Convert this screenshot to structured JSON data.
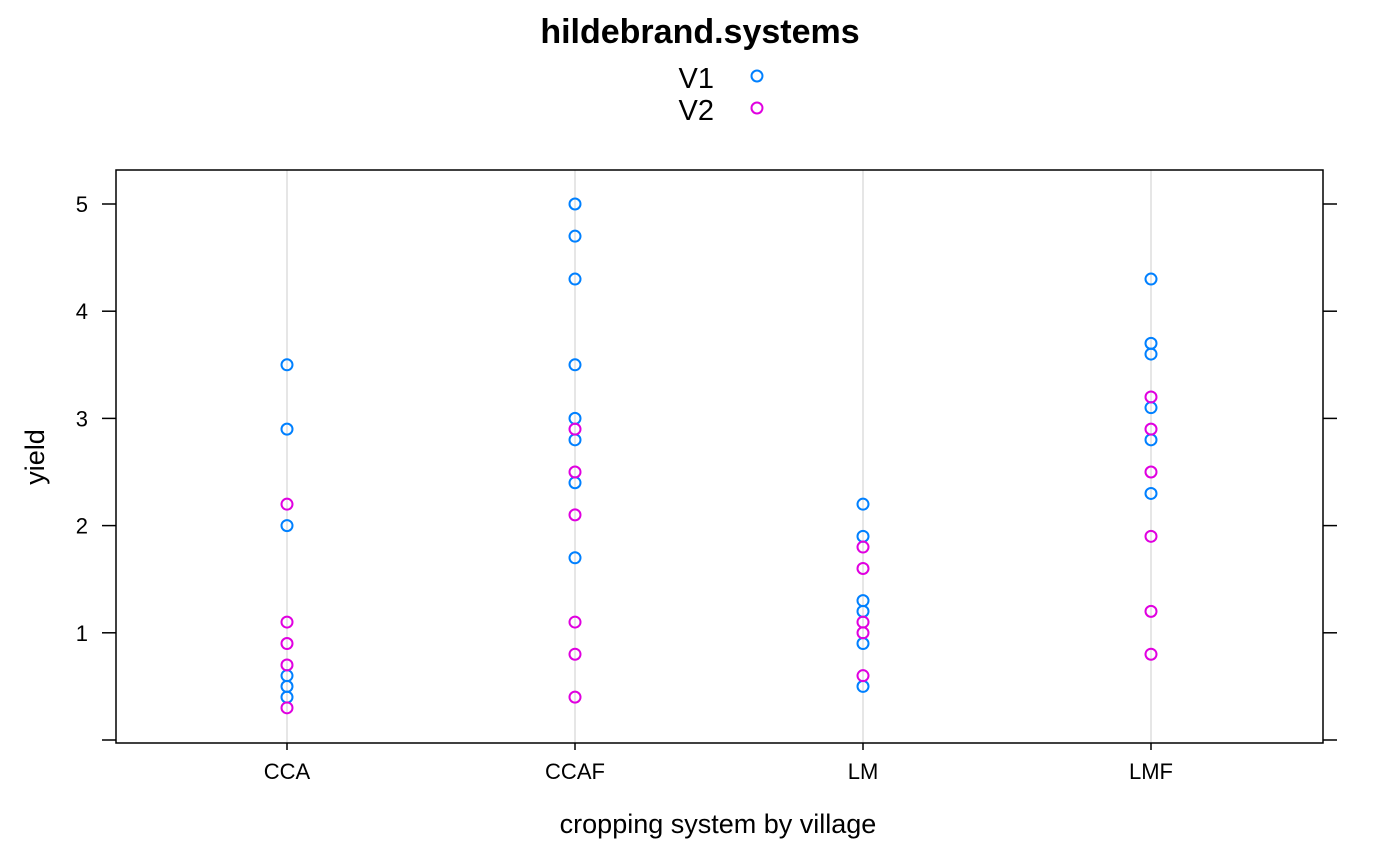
{
  "chart_data": {
    "type": "scatter",
    "title": "hildebrand.systems",
    "xlabel": "cropping system by village",
    "ylabel": "yield",
    "categories": [
      "CCA",
      "CCAF",
      "LM",
      "LMF"
    ],
    "ylim": [
      0,
      5.3
    ],
    "yticks": [
      "1",
      "2",
      "3",
      "4",
      "5"
    ],
    "grid": "vertical",
    "legend_position": "top",
    "series": [
      {
        "name": "V1",
        "color": "#0080ff",
        "points": [
          [
            "CCA",
            3.5
          ],
          [
            "CCA",
            2.9
          ],
          [
            "CCA",
            2.0
          ],
          [
            "CCA",
            0.6
          ],
          [
            "CCA",
            0.5
          ],
          [
            "CCA",
            0.4
          ],
          [
            "CCAF",
            5.0
          ],
          [
            "CCAF",
            4.7
          ],
          [
            "CCAF",
            4.3
          ],
          [
            "CCAF",
            3.5
          ],
          [
            "CCAF",
            3.0
          ],
          [
            "CCAF",
            2.8
          ],
          [
            "CCAF",
            2.4
          ],
          [
            "CCAF",
            1.7
          ],
          [
            "LM",
            2.2
          ],
          [
            "LM",
            1.9
          ],
          [
            "LM",
            1.3
          ],
          [
            "LM",
            1.2
          ],
          [
            "LM",
            0.9
          ],
          [
            "LM",
            0.5
          ],
          [
            "LMF",
            4.3
          ],
          [
            "LMF",
            3.7
          ],
          [
            "LMF",
            3.6
          ],
          [
            "LMF",
            3.1
          ],
          [
            "LMF",
            2.8
          ],
          [
            "LMF",
            2.3
          ]
        ]
      },
      {
        "name": "V2",
        "color": "#e000e0",
        "points": [
          [
            "CCA",
            2.2
          ],
          [
            "CCA",
            1.1
          ],
          [
            "CCA",
            0.9
          ],
          [
            "CCA",
            0.7
          ],
          [
            "CCA",
            0.3
          ],
          [
            "CCAF",
            2.9
          ],
          [
            "CCAF",
            2.5
          ],
          [
            "CCAF",
            2.1
          ],
          [
            "CCAF",
            1.1
          ],
          [
            "CCAF",
            0.8
          ],
          [
            "CCAF",
            0.4
          ],
          [
            "LM",
            1.8
          ],
          [
            "LM",
            1.6
          ],
          [
            "LM",
            1.1
          ],
          [
            "LM",
            1.0
          ],
          [
            "LM",
            0.6
          ],
          [
            "LMF",
            3.2
          ],
          [
            "LMF",
            2.9
          ],
          [
            "LMF",
            2.5
          ],
          [
            "LMF",
            1.9
          ],
          [
            "LMF",
            1.2
          ],
          [
            "LMF",
            0.8
          ]
        ]
      }
    ]
  }
}
